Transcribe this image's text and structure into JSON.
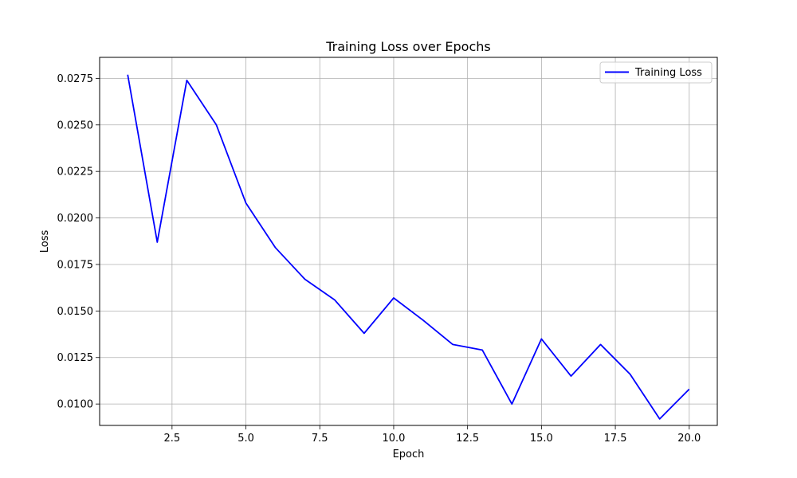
{
  "chart_data": {
    "type": "line",
    "title": "Training Loss over Epochs",
    "xlabel": "Epoch",
    "ylabel": "Loss",
    "xlim": [
      0.05,
      20.95
    ],
    "ylim": [
      0.00885,
      0.02863
    ],
    "xticks": [
      2.5,
      5.0,
      7.5,
      10.0,
      12.5,
      15.0,
      17.5,
      20.0
    ],
    "xtick_labels": [
      "2.5",
      "5.0",
      "7.5",
      "10.0",
      "12.5",
      "15.0",
      "17.5",
      "20.0"
    ],
    "yticks": [
      0.01,
      0.0125,
      0.015,
      0.0175,
      0.02,
      0.0225,
      0.025,
      0.0275
    ],
    "ytick_labels": [
      "0.0100",
      "0.0125",
      "0.0150",
      "0.0175",
      "0.0200",
      "0.0225",
      "0.0250",
      "0.0275"
    ],
    "grid": true,
    "legend_position": "top-right",
    "x": [
      1,
      2,
      3,
      4,
      5,
      6,
      7,
      8,
      9,
      10,
      11,
      12,
      13,
      14,
      15,
      16,
      17,
      18,
      19,
      20
    ],
    "series": [
      {
        "name": "Training Loss",
        "color": "#0000ff",
        "values": [
          0.0277,
          0.0187,
          0.0274,
          0.025,
          0.0208,
          0.0184,
          0.0167,
          0.0156,
          0.0138,
          0.0157,
          0.0145,
          0.0132,
          0.0129,
          0.01,
          0.0135,
          0.0115,
          0.0132,
          0.0116,
          0.0092,
          0.0108
        ]
      }
    ]
  },
  "colors": {
    "grid": "#b0b0b0",
    "axes": "#000000",
    "background": "#ffffff"
  }
}
